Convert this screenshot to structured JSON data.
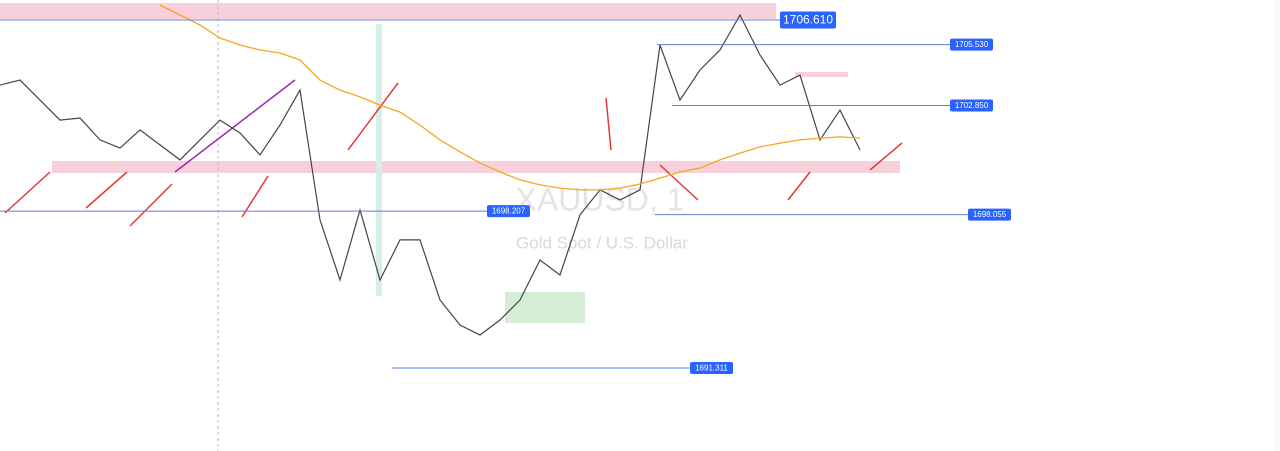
{
  "chart_data": {
    "type": "line",
    "symbol": "XAUUSD, 1",
    "description": "Gold Spot / U.S. Dollar",
    "ylim": [
      1687.66,
      1707.49
    ],
    "series": [
      {
        "name": "XAUUSD",
        "color": "#444444",
        "values": [
          1703.75,
          1703.97,
          1703.09,
          1702.21,
          1702.3,
          1701.34,
          1700.98,
          1701.78,
          1701.12,
          1700.46,
          1701.34,
          1702.21,
          1701.64,
          1700.68,
          1701.99,
          1703.53,
          1697.82,
          1695.18,
          1698.26,
          1695.18,
          1696.94,
          1696.94,
          1694.3,
          1693.2,
          1692.76,
          1693.42,
          1694.3,
          1696.06,
          1695.4,
          1698.04,
          1699.14,
          1698.7,
          1699.14,
          1705.51,
          1703.09,
          1704.41,
          1705.29,
          1706.83,
          1705.07,
          1703.75,
          1704.19,
          1701.34,
          1702.65,
          1700.9
        ]
      },
      {
        "name": "MA",
        "color": "#f5a623",
        "values": [
          null,
          null,
          null,
          null,
          null,
          null,
          null,
          null,
          1707.27,
          1706.83,
          1706.39,
          1705.82,
          1705.51,
          1705.29,
          1705.16,
          1704.85,
          1703.97,
          1703.53,
          1703.23,
          1702.87,
          1702.56,
          1701.99,
          1701.34,
          1700.81,
          1700.32,
          1699.93,
          1699.58,
          1699.36,
          1699.22,
          1699.14,
          1699.14,
          1699.22,
          1699.4,
          1699.66,
          1699.93,
          1700.1,
          1700.46,
          1700.76,
          1701.03,
          1701.2,
          1701.34,
          1701.42,
          1701.47,
          1701.42
        ]
      }
    ],
    "price_labels": [
      {
        "value": 1706.61,
        "label": "1706.610"
      },
      {
        "value": 1705.53,
        "label": "1705.530"
      },
      {
        "value": 1702.85,
        "label": "1702.850"
      },
      {
        "value": 1698.207,
        "label": "1698.207"
      },
      {
        "value": 1698.055,
        "label": "1698.055"
      },
      {
        "value": 1691.311,
        "label": "1691.311"
      }
    ]
  }
}
